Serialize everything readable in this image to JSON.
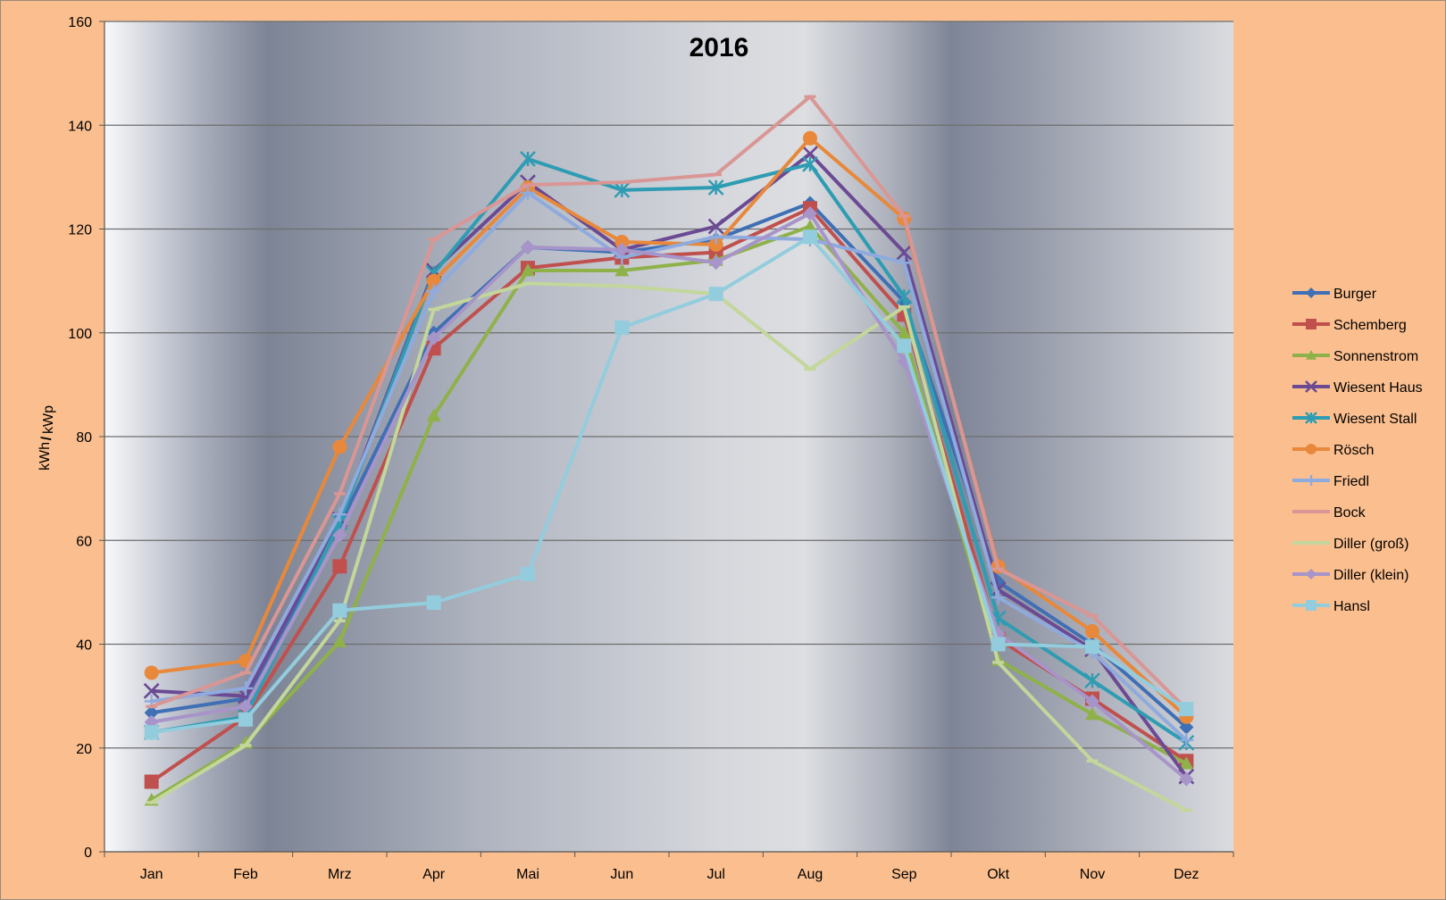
{
  "chart_data": {
    "type": "line",
    "title": "2016",
    "xlabel": "",
    "ylabel_main": "kWh",
    "ylabel_slash": "/",
    "ylabel_sub": "kWp",
    "categories": [
      "Jan",
      "Feb",
      "Mrz",
      "Apr",
      "Mai",
      "Jun",
      "Jul",
      "Aug",
      "Sep",
      "Okt",
      "Nov",
      "Dez"
    ],
    "ylim": [
      0,
      160
    ],
    "yticks": [
      0,
      20,
      40,
      60,
      80,
      100,
      120,
      140,
      160
    ],
    "grid": "horizontal",
    "legend_position": "right",
    "series": [
      {
        "name": "Burger",
        "color": "#3F6FB4",
        "marker": "diamond",
        "values": [
          26.8,
          29.5,
          63.0,
          100.0,
          116.5,
          115.5,
          118.0,
          125.0,
          106.0,
          52.0,
          40.0,
          24.0
        ]
      },
      {
        "name": "Schemberg",
        "color": "#C0504D",
        "marker": "square",
        "values": [
          13.5,
          26.0,
          55.0,
          97.0,
          112.5,
          114.5,
          115.5,
          124.0,
          103.5,
          41.0,
          29.5,
          17.5
        ]
      },
      {
        "name": "Sonnenstrom",
        "color": "#8FB14A",
        "marker": "triangle",
        "values": [
          10.0,
          21.0,
          40.5,
          84.0,
          112.0,
          112.0,
          114.0,
          120.5,
          100.0,
          37.0,
          26.5,
          17.0
        ]
      },
      {
        "name": "Wiesent Haus",
        "color": "#6B4A93",
        "marker": "x",
        "values": [
          31.0,
          30.0,
          64.0,
          112.0,
          129.0,
          116.0,
          120.5,
          134.5,
          115.5,
          50.5,
          39.0,
          14.5
        ]
      },
      {
        "name": "Wiesent Stall",
        "color": "#2E9CB2",
        "marker": "star",
        "values": [
          23.0,
          26.0,
          63.5,
          111.5,
          133.5,
          127.5,
          128.0,
          132.5,
          107.0,
          45.0,
          33.0,
          21.0
        ]
      },
      {
        "name": "Rösch",
        "color": "#E8883A",
        "marker": "circle",
        "values": [
          34.5,
          36.8,
          78.0,
          110.0,
          128.0,
          117.5,
          117.0,
          137.5,
          122.0,
          55.0,
          42.5,
          26.0
        ]
      },
      {
        "name": "Friedl",
        "color": "#8FAADC",
        "marker": "plus",
        "values": [
          29.0,
          31.5,
          65.0,
          108.0,
          127.0,
          114.5,
          118.5,
          118.0,
          113.5,
          49.0,
          38.5,
          21.5
        ]
      },
      {
        "name": "Bock",
        "color": "#D99694",
        "marker": "dash",
        "values": [
          28.0,
          34.5,
          69.0,
          118.0,
          128.5,
          129.0,
          130.5,
          145.5,
          122.5,
          54.5,
          45.5,
          27.5
        ]
      },
      {
        "name": "Diller (groß)",
        "color": "#C3D69B",
        "marker": "dash",
        "values": [
          9.5,
          20.5,
          44.5,
          104.5,
          109.5,
          109.0,
          107.5,
          93.0,
          105.0,
          36.5,
          17.5,
          8.0
        ]
      },
      {
        "name": "Diller (klein)",
        "color": "#A794C9",
        "marker": "diamond",
        "values": [
          25.0,
          28.0,
          61.0,
          99.0,
          116.5,
          116.0,
          113.5,
          123.0,
          94.5,
          42.0,
          29.0,
          14.0
        ]
      },
      {
        "name": "Hansl",
        "color": "#93CDDD",
        "marker": "square",
        "values": [
          23.0,
          25.5,
          46.5,
          48.0,
          53.5,
          101.0,
          107.5,
          118.5,
          97.5,
          40.0,
          39.5,
          27.5
        ]
      }
    ]
  }
}
